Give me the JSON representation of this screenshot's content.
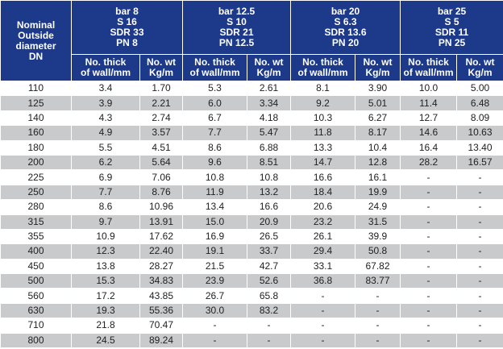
{
  "table": {
    "corner": [
      "Nominal",
      "Outside",
      "diameter",
      "DN"
    ],
    "groups": [
      [
        "bar 8",
        "S 16",
        "SDR 33",
        "PN 8"
      ],
      [
        "bar 12.5",
        "S 10",
        "SDR 21",
        "PN 12.5"
      ],
      [
        "bar 20",
        "S 6.3",
        "SDR 13.6",
        "PN 20"
      ],
      [
        "bar 25",
        "S 5",
        "SDR 11",
        "PN 25"
      ]
    ],
    "subheaders": [
      [
        "No. thick",
        "of wall/mm"
      ],
      [
        "No. wt",
        "Kg/m"
      ],
      [
        "No. thick",
        "of wall/mm"
      ],
      [
        "No. wt",
        "Kg/m"
      ],
      [
        "No. thick",
        "of wall/mm"
      ],
      [
        "No. wt",
        "Kg/m"
      ],
      [
        "No. thick",
        "of wall/mm"
      ],
      [
        "No. wt",
        "Kg/m"
      ]
    ],
    "rows": [
      [
        "110",
        "3.4",
        "1.70",
        "5.3",
        "2.61",
        "8.1",
        "3.90",
        "10.0",
        "5.00"
      ],
      [
        "125",
        "3.9",
        "2.21",
        "6.0",
        "3.34",
        "9.2",
        "5.01",
        "11.4",
        "6.48"
      ],
      [
        "140",
        "4.3",
        "2.74",
        "6.7",
        "4.18",
        "10.3",
        "6.27",
        "12.7",
        "8.09"
      ],
      [
        "160",
        "4.9",
        "3.57",
        "7.7",
        "5.47",
        "11.8",
        "8.17",
        "14.6",
        "10.63"
      ],
      [
        "180",
        "5.5",
        "4.51",
        "8.6",
        "6.88",
        "13.3",
        "10.4",
        "16.4",
        "13.40"
      ],
      [
        "200",
        "6.2",
        "5.64",
        "9.6",
        "8.51",
        "14.7",
        "12.8",
        "28.2",
        "16.57"
      ],
      [
        "225",
        "6.9",
        "7.06",
        "10.8",
        "10.8",
        "16.6",
        "16.1",
        "-",
        "-"
      ],
      [
        "250",
        "7.7",
        "8.76",
        "11.9",
        "13.2",
        "18.4",
        "19.9",
        "-",
        "-"
      ],
      [
        "280",
        "8.6",
        "10.96",
        "13.4",
        "16.6",
        "20.6",
        "24.9",
        "-",
        "-"
      ],
      [
        "315",
        "9.7",
        "13.91",
        "15.0",
        "20.9",
        "23.2",
        "31.5",
        "-",
        "-"
      ],
      [
        "355",
        "10.9",
        "17.62",
        "16.9",
        "26.5",
        "26.1",
        "39.9",
        "-",
        "-"
      ],
      [
        "400",
        "12.3",
        "22.40",
        "19.1",
        "33.7",
        "29.4",
        "50.8",
        "-",
        "-"
      ],
      [
        "450",
        "13.8",
        "28.27",
        "21.5",
        "42.7",
        "33.1",
        "67.82",
        "-",
        "-"
      ],
      [
        "500",
        "15.3",
        "34.83",
        "23.9",
        "52.6",
        "36.8",
        "83.77",
        "-",
        "-"
      ],
      [
        "560",
        "17.2",
        "43.85",
        "26.7",
        "65.8",
        "-",
        "-",
        "-",
        "-"
      ],
      [
        "630",
        "19.3",
        "55.36",
        "30.0",
        "83.2",
        "-",
        "-",
        "-",
        "-"
      ],
      [
        "710",
        "21.8",
        "70.47",
        "-",
        "-",
        "-",
        "-",
        "-",
        "-"
      ],
      [
        "800",
        "24.5",
        "89.24",
        "-",
        "-",
        "-",
        "-",
        "-",
        "-"
      ]
    ]
  }
}
